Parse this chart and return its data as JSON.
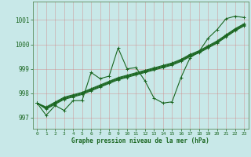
{
  "xlabel": "Graphe pression niveau de la mer (hPa)",
  "bg_color": "#c8e8e8",
  "grid_color": "#b0c8c8",
  "line_color": "#1a6620",
  "spine_color": "#5a8a5a",
  "x_ticks": [
    0,
    1,
    2,
    3,
    4,
    5,
    6,
    7,
    8,
    9,
    10,
    11,
    12,
    13,
    14,
    15,
    16,
    17,
    18,
    19,
    20,
    21,
    22,
    23
  ],
  "y_ticks": [
    997,
    998,
    999,
    1000,
    1001
  ],
  "ylim": [
    996.55,
    1001.75
  ],
  "xlim": [
    -0.5,
    23.5
  ],
  "volatile_y": [
    997.6,
    997.1,
    997.5,
    997.3,
    997.7,
    997.7,
    998.85,
    998.6,
    998.7,
    999.85,
    999.0,
    999.05,
    998.5,
    997.8,
    997.6,
    997.65,
    998.65,
    999.45,
    999.7,
    1000.25,
    1000.6,
    1001.05,
    1001.15,
    1001.1
  ],
  "trend_lines": [
    [
      997.6,
      997.35,
      997.55,
      997.75,
      997.85,
      997.95,
      998.1,
      998.25,
      998.4,
      998.55,
      998.65,
      998.75,
      998.85,
      998.95,
      999.05,
      999.15,
      999.3,
      999.5,
      999.65,
      999.85,
      1000.05,
      1000.3,
      1000.55,
      1000.75
    ],
    [
      997.6,
      997.38,
      997.58,
      997.78,
      997.88,
      997.98,
      998.13,
      998.28,
      998.43,
      998.58,
      998.68,
      998.78,
      998.88,
      998.98,
      999.08,
      999.18,
      999.33,
      999.53,
      999.68,
      999.88,
      1000.08,
      1000.33,
      1000.58,
      1000.78
    ],
    [
      997.6,
      997.41,
      997.61,
      997.81,
      997.91,
      998.01,
      998.16,
      998.31,
      998.46,
      998.61,
      998.71,
      998.81,
      998.91,
      999.01,
      999.11,
      999.21,
      999.36,
      999.56,
      999.71,
      999.91,
      1000.11,
      1000.36,
      1000.61,
      1000.81
    ],
    [
      997.6,
      997.44,
      997.64,
      997.84,
      997.94,
      998.04,
      998.19,
      998.34,
      998.49,
      998.64,
      998.74,
      998.84,
      998.94,
      999.04,
      999.14,
      999.24,
      999.39,
      999.59,
      999.74,
      999.94,
      1000.14,
      1000.39,
      1000.64,
      1000.84
    ]
  ]
}
